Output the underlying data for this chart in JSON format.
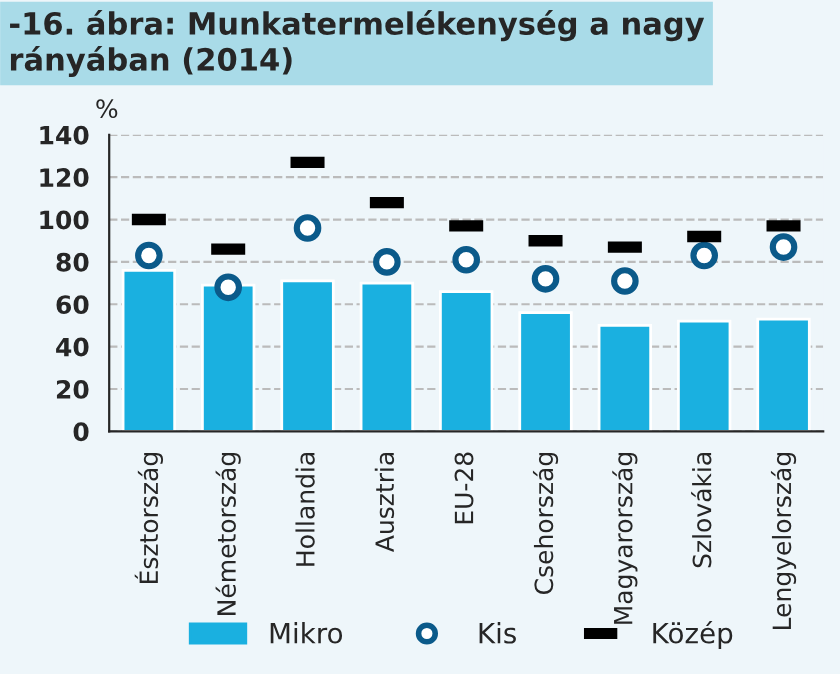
{
  "chart_data": {
    "type": "bar",
    "title": "-16. ábra: Munkatermelékenység a nagy\nrányában (2014)",
    "ylabel": "%",
    "categories": [
      "Észtország",
      "Németország",
      "Hollandia",
      "Ausztria",
      "EU-28",
      "Csehország",
      "Magyarország",
      "Szlovákia",
      "Lengyelország"
    ],
    "series": [
      {
        "name": "Mikro",
        "color": "#1ab0e0",
        "values": [
          76,
          69,
          71,
          70,
          66,
          56,
          50,
          52,
          53
        ]
      },
      {
        "name": "Kis",
        "type": "scatter",
        "marker": "circle",
        "color": "#0b5a8a",
        "values": [
          83,
          68,
          96,
          80,
          81,
          72,
          71,
          83,
          87
        ]
      },
      {
        "name": "Közép",
        "type": "scatter",
        "marker": "square",
        "color": "#000000",
        "values": [
          100,
          86,
          127,
          108,
          97,
          90,
          87,
          92,
          97
        ]
      }
    ],
    "ylim": [
      0,
      140
    ],
    "yticks": [
      0,
      20,
      40,
      60,
      80,
      100,
      120,
      140
    ],
    "grid": "y",
    "legend": "bottom"
  }
}
